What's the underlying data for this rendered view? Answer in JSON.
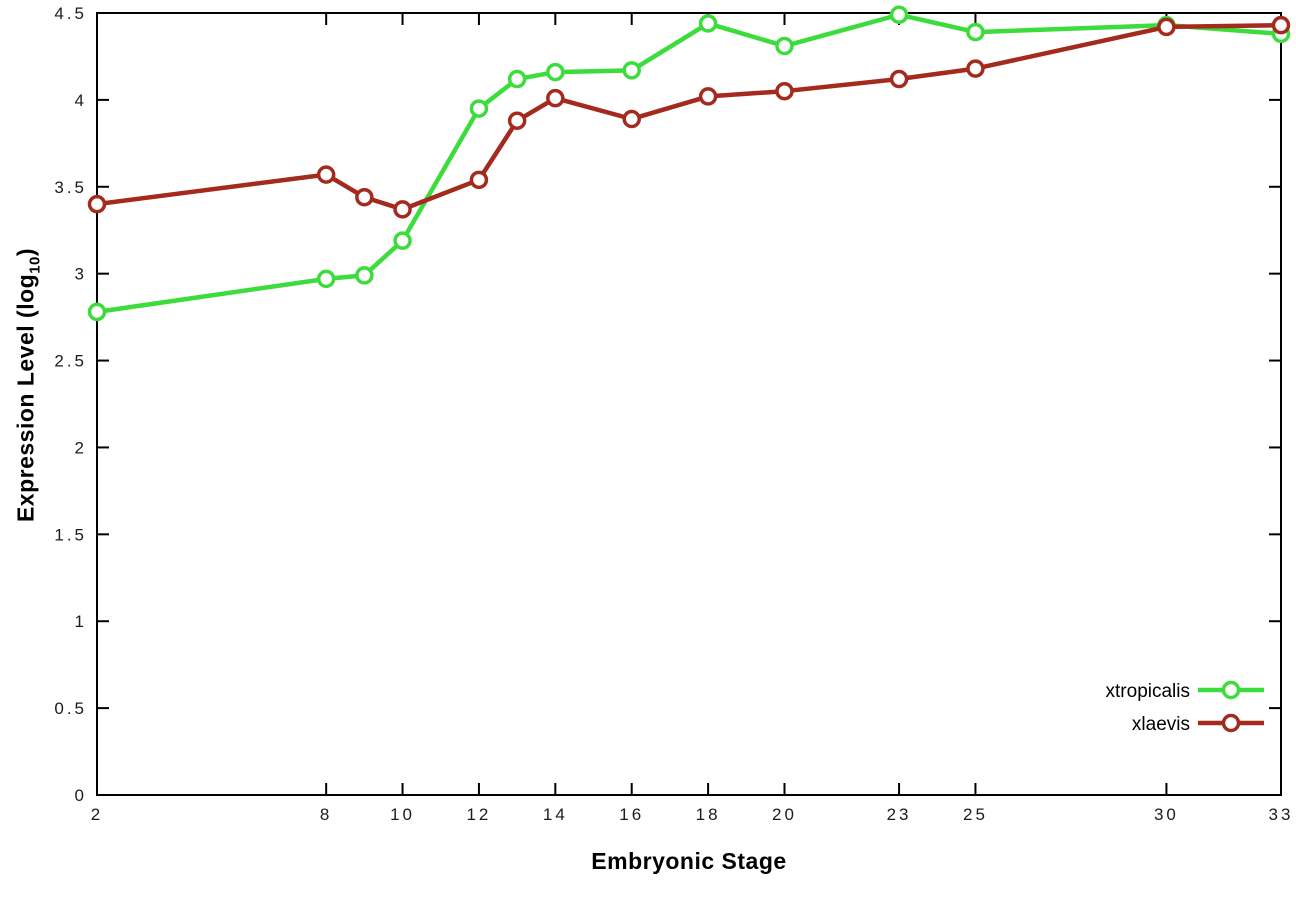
{
  "chart_data": {
    "type": "line",
    "xlabel": "Embryonic Stage",
    "ylabel": "Expression Level (log10)",
    "ylabel_parts": {
      "prefix": "Expression Level (log",
      "subscript": "10",
      "suffix": ")"
    },
    "x": [
      2,
      8,
      9,
      10,
      12,
      13,
      14,
      16,
      18,
      20,
      23,
      25,
      30,
      33
    ],
    "xlim": [
      2,
      33
    ],
    "ylim": [
      0,
      4.5
    ],
    "x_tick_labels": [
      "2",
      "8",
      "10",
      "12",
      "14",
      "16",
      "18",
      "20",
      "23",
      "25",
      "30",
      "33"
    ],
    "y_tick_labels": [
      "0",
      "0.5",
      "1",
      "1.5",
      "2",
      "2.5",
      "3",
      "3.5",
      "4",
      "4.5"
    ],
    "grid": false,
    "legend_position": "bottom-right",
    "axis_color": "#000000",
    "marker": "open-circle",
    "series": [
      {
        "name": "xtropicalis",
        "color": "#3bdc3b",
        "values": [
          2.78,
          2.97,
          2.99,
          3.19,
          3.95,
          4.12,
          4.16,
          4.17,
          4.44,
          4.31,
          4.49,
          4.39,
          4.43,
          4.38
        ]
      },
      {
        "name": "xlaevis",
        "color": "#a42a1e",
        "values": [
          3.4,
          3.57,
          3.44,
          3.37,
          3.54,
          3.88,
          4.01,
          3.89,
          4.02,
          4.05,
          4.12,
          4.18,
          4.42,
          4.43
        ]
      }
    ]
  }
}
